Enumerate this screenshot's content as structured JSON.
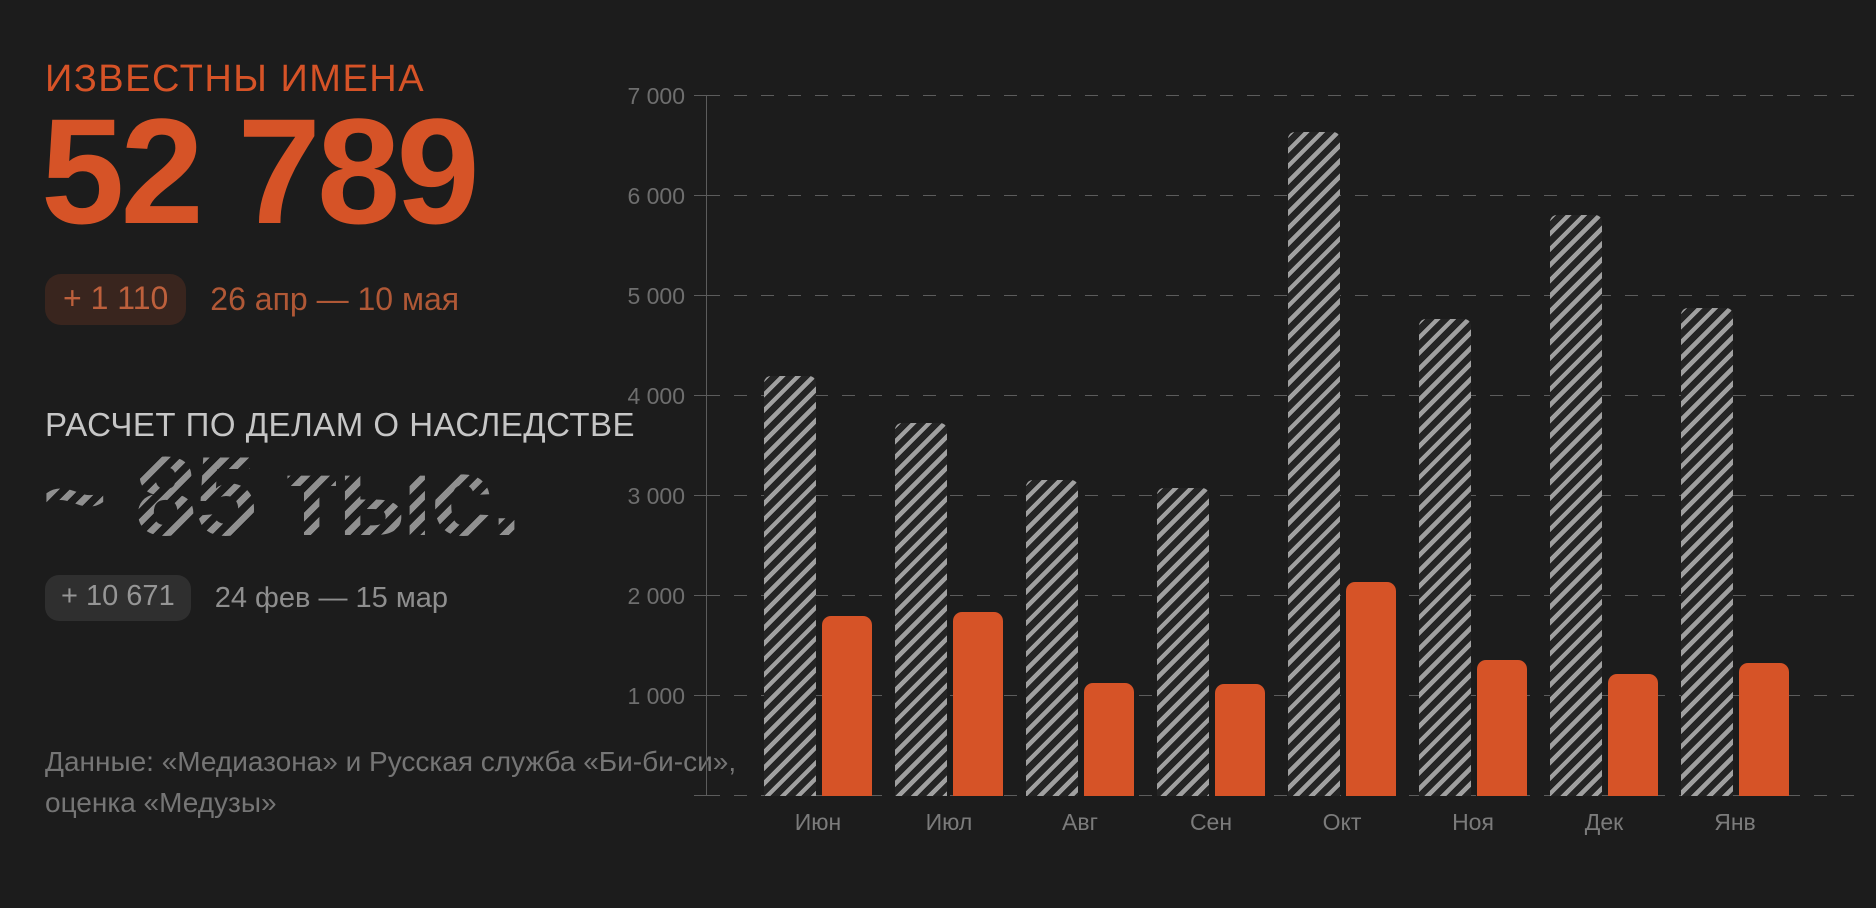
{
  "colors": {
    "background": "#1c1c1c",
    "accent_orange": "#d65327",
    "muted_orange": "#b05836",
    "hatch_gray": "#a0a0a0",
    "grid_gray": "#5c5c5c"
  },
  "panel": {
    "known_names_title": "ИЗВЕСТНЫ ИМЕНА",
    "known_names_total": "52 789",
    "known_names_delta": "+ 1 110",
    "known_names_period": "26 апр — 10 мая",
    "inheritance_subtitle": "РАСЧЕТ ПО ДЕЛАМ О НАСЛЕДСТВЕ",
    "inheritance_estimate": "~ 85 тыс.",
    "inheritance_delta": "+ 10 671",
    "inheritance_period": "24 фев — 15 мар",
    "source_line1": "Данные: «Медиазона» и Русская служба «Би-би-си»,",
    "source_line2": "оценка «Медузы»"
  },
  "chart_data": {
    "type": "bar",
    "categories": [
      "Июн",
      "Июл",
      "Авг",
      "Сен",
      "Окт",
      "Ноя",
      "Дек",
      "Янв"
    ],
    "series": [
      {
        "name": "inheritance-estimate",
        "style": "hatched",
        "values": [
          4200,
          3730,
          3160,
          3080,
          6640,
          4770,
          5810,
          4880
        ]
      },
      {
        "name": "confirmed-names",
        "style": "solid-orange",
        "values": [
          1800,
          1840,
          1130,
          1120,
          2140,
          1360,
          1220,
          1330
        ]
      }
    ],
    "ylim": [
      0,
      7000
    ],
    "yticks": [
      1000,
      2000,
      3000,
      4000,
      5000,
      6000,
      7000
    ],
    "ytick_labels": [
      "1 000",
      "2 000",
      "3 000",
      "4 000",
      "5 000",
      "6 000",
      "7 000"
    ],
    "xlabel": "",
    "ylabel": "",
    "title": "",
    "grid": "dashed-horizontal",
    "legend": "none"
  }
}
